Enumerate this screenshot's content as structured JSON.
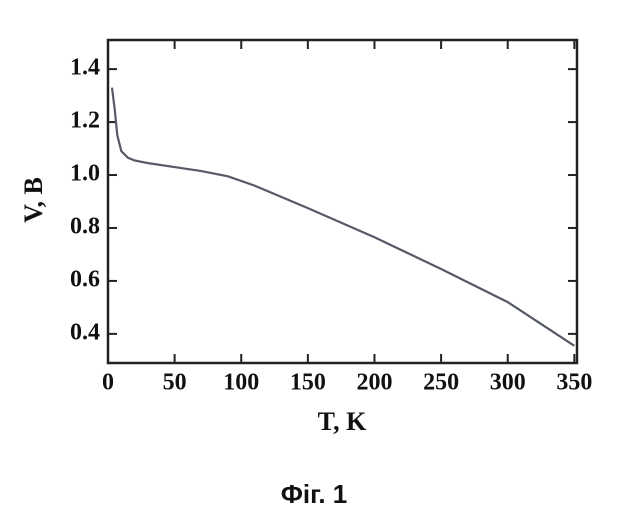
{
  "chart_data": {
    "type": "line",
    "x_label": "T, K",
    "y_label": "V, B",
    "caption": "Фіг. 1",
    "series": [
      {
        "color": "#555a66",
        "x": [
          3,
          5,
          7,
          10,
          15,
          20,
          30,
          50,
          70,
          90,
          110,
          150,
          200,
          250,
          300,
          350
        ],
        "values": [
          1.33,
          1.25,
          1.15,
          1.09,
          1.065,
          1.055,
          1.045,
          1.03,
          1.015,
          0.995,
          0.96,
          0.875,
          0.765,
          0.645,
          0.52,
          0.355
        ]
      }
    ],
    "xlim": [
      0,
      352
    ],
    "ylim": [
      0.29,
      1.51
    ],
    "xticks": [
      0,
      50,
      100,
      150,
      200,
      250,
      300,
      350
    ],
    "yticks": [
      0.4,
      0.6,
      0.8,
      {
        "value": 1,
        "label": "1.0"
      },
      1.2,
      1.4
    ]
  }
}
